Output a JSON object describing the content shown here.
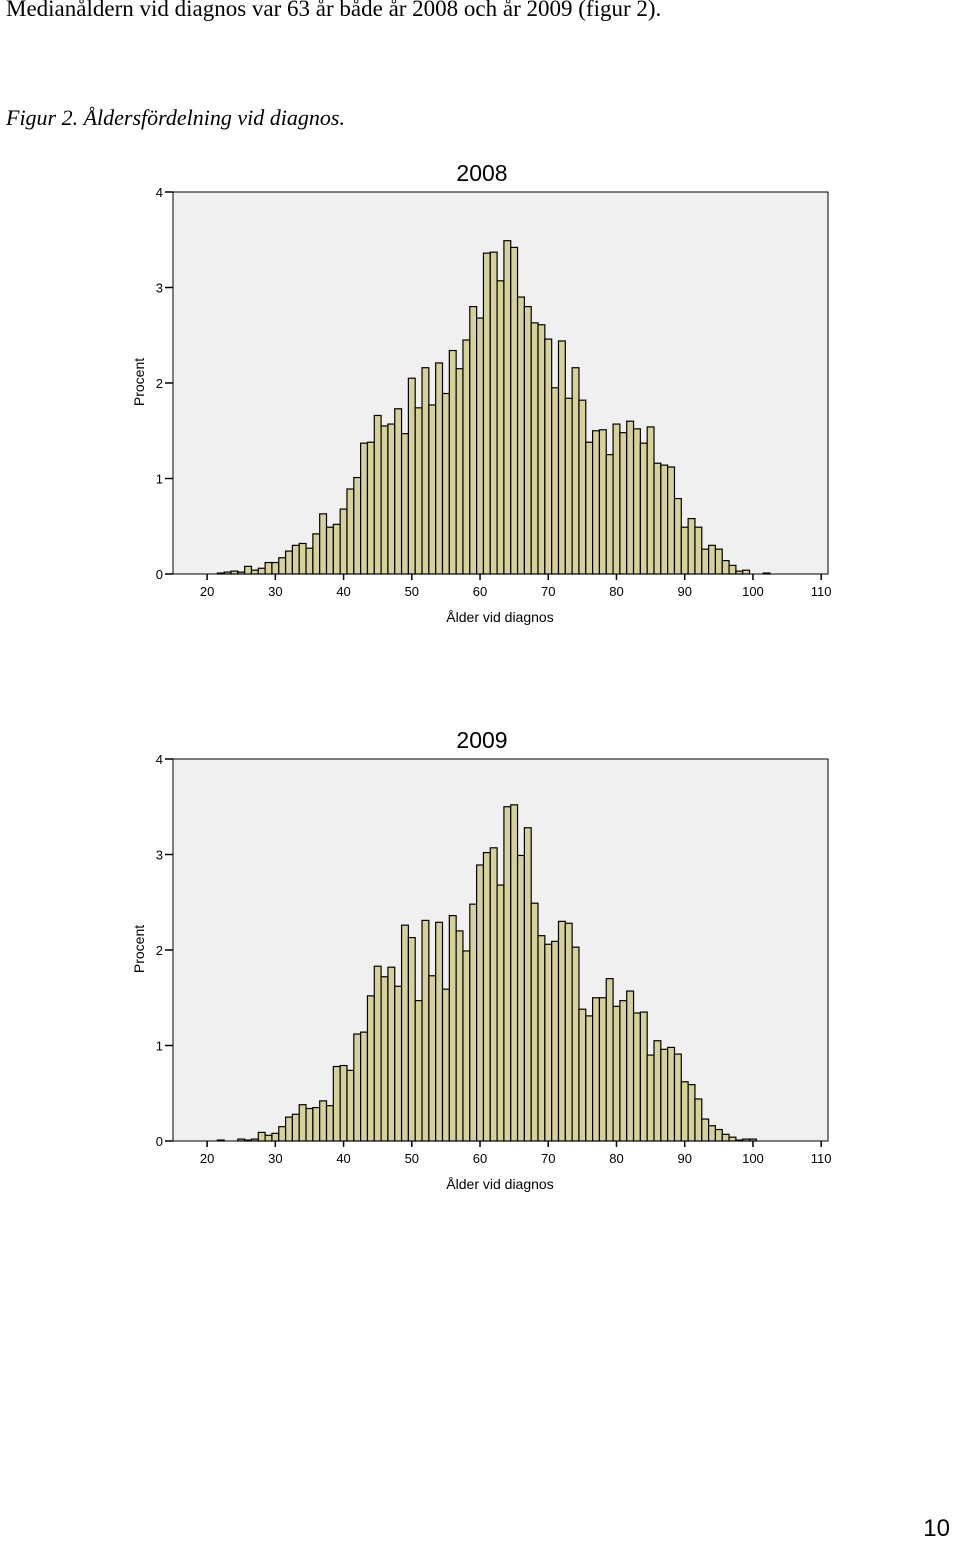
{
  "text": {
    "intro": "Medianåldern vid diagnos var 63 år både år 2008 och år 2009 (figur 2).",
    "caption": "Figur 2. Åldersfördelning vid diagnos.",
    "page_number": "10"
  },
  "colors": {
    "bar_fill": "#d6d09a",
    "plot_background": "#f0f0f0",
    "bar_stroke": "#000000"
  },
  "chart_data": [
    {
      "type": "bar",
      "title": "2008",
      "xlabel": "Ålder vid diagnos",
      "ylabel": "Procent",
      "xlim": [
        15,
        111
      ],
      "ylim": [
        0,
        4
      ],
      "xticks": [
        20,
        30,
        40,
        50,
        60,
        70,
        80,
        90,
        100,
        110
      ],
      "yticks": [
        0,
        1,
        2,
        3,
        4
      ],
      "x": [
        18,
        19,
        20,
        21,
        22,
        23,
        24,
        25,
        26,
        27,
        28,
        29,
        30,
        31,
        32,
        33,
        34,
        35,
        36,
        37,
        38,
        39,
        40,
        41,
        42,
        43,
        44,
        45,
        46,
        47,
        48,
        49,
        50,
        51,
        52,
        53,
        54,
        55,
        56,
        57,
        58,
        59,
        60,
        61,
        62,
        63,
        64,
        65,
        66,
        67,
        68,
        69,
        70,
        71,
        72,
        73,
        74,
        75,
        76,
        77,
        78,
        79,
        80,
        81,
        82,
        83,
        84,
        85,
        86,
        87,
        88,
        89,
        90,
        91,
        92,
        93,
        94,
        95,
        96,
        97,
        98,
        99,
        100,
        101,
        102
      ],
      "values": [
        0,
        0,
        0,
        0,
        0.01,
        0.02,
        0.03,
        0.02,
        0.08,
        0.04,
        0.06,
        0.12,
        0.12,
        0.17,
        0.24,
        0.3,
        0.32,
        0.27,
        0.42,
        0.63,
        0.49,
        0.52,
        0.68,
        0.89,
        1.01,
        1.37,
        1.38,
        1.66,
        1.55,
        1.57,
        1.73,
        1.47,
        2.05,
        1.74,
        2.16,
        1.77,
        2.21,
        1.89,
        2.34,
        2.15,
        2.45,
        2.8,
        2.68,
        3.36,
        3.37,
        3.07,
        3.49,
        3.42,
        2.9,
        2.8,
        2.63,
        2.61,
        2.46,
        1.95,
        2.44,
        1.84,
        2.16,
        1.82,
        1.38,
        1.5,
        1.51,
        1.25,
        1.57,
        1.48,
        1.6,
        1.52,
        1.37,
        1.54,
        1.16,
        1.14,
        1.12,
        0.79,
        0.49,
        0.58,
        0.49,
        0.26,
        0.3,
        0.26,
        0.14,
        0.09,
        0.03,
        0.04,
        0,
        0,
        0.01
      ]
    },
    {
      "type": "bar",
      "title": "2009",
      "xlabel": "Ålder vid diagnos",
      "ylabel": "Procent",
      "xlim": [
        15,
        111
      ],
      "ylim": [
        0,
        4
      ],
      "xticks": [
        20,
        30,
        40,
        50,
        60,
        70,
        80,
        90,
        100,
        110
      ],
      "yticks": [
        0,
        1,
        2,
        3,
        4
      ],
      "x": [
        18,
        19,
        20,
        21,
        22,
        23,
        24,
        25,
        26,
        27,
        28,
        29,
        30,
        31,
        32,
        33,
        34,
        35,
        36,
        37,
        38,
        39,
        40,
        41,
        42,
        43,
        44,
        45,
        46,
        47,
        48,
        49,
        50,
        51,
        52,
        53,
        54,
        55,
        56,
        57,
        58,
        59,
        60,
        61,
        62,
        63,
        64,
        65,
        66,
        67,
        68,
        69,
        70,
        71,
        72,
        73,
        74,
        75,
        76,
        77,
        78,
        79,
        80,
        81,
        82,
        83,
        84,
        85,
        86,
        87,
        88,
        89,
        90,
        91,
        92,
        93,
        94,
        95,
        96,
        97,
        98,
        99,
        100,
        101,
        102
      ],
      "values": [
        0,
        0,
        0,
        0,
        0.01,
        0,
        0,
        0.02,
        0.01,
        0.02,
        0.09,
        0.06,
        0.08,
        0.15,
        0.25,
        0.28,
        0.38,
        0.34,
        0.35,
        0.42,
        0.37,
        0.78,
        0.79,
        0.74,
        1.12,
        1.14,
        1.52,
        1.83,
        1.72,
        1.82,
        1.62,
        2.26,
        2.13,
        1.47,
        2.31,
        1.73,
        2.29,
        1.59,
        2.36,
        2.2,
        1.99,
        2.48,
        2.89,
        3.02,
        3.07,
        2.68,
        3.5,
        3.52,
        2.99,
        3.28,
        2.49,
        2.15,
        2.06,
        2.09,
        2.3,
        2.28,
        2.03,
        1.38,
        1.31,
        1.5,
        1.5,
        1.7,
        1.41,
        1.47,
        1.57,
        1.34,
        1.35,
        0.9,
        1.05,
        0.96,
        0.98,
        0.91,
        0.62,
        0.59,
        0.44,
        0.23,
        0.16,
        0.12,
        0.07,
        0.04,
        0.01,
        0.02,
        0.02,
        0,
        0
      ]
    }
  ]
}
